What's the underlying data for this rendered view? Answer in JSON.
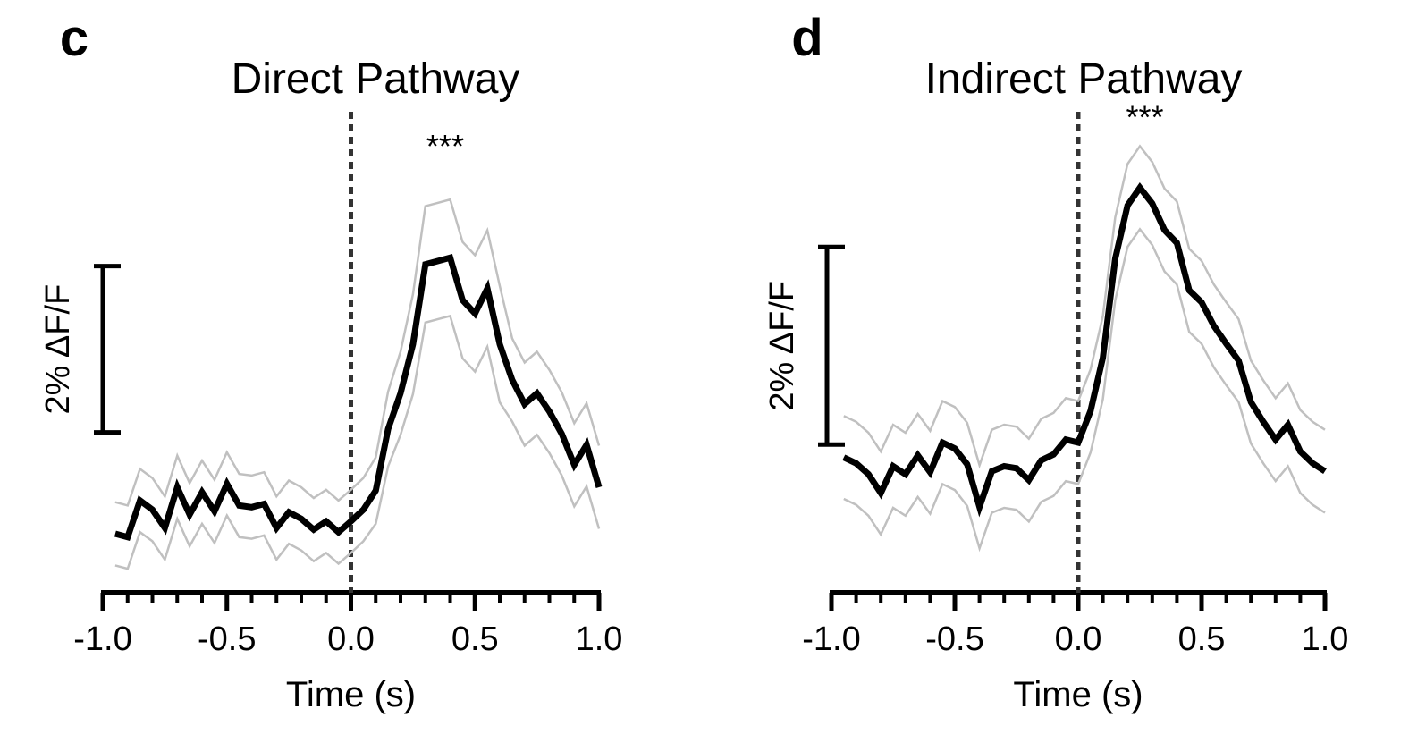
{
  "chart_data": [
    {
      "type": "line",
      "panel_label": "c",
      "title": "Direct Pathway",
      "x_label": "Time (s)",
      "annotation": "***",
      "scale_bar": {
        "value": 2,
        "label": "2% ΔF/F"
      },
      "x": [
        -0.95,
        -0.9,
        -0.85,
        -0.8,
        -0.75,
        -0.7,
        -0.65,
        -0.6,
        -0.55,
        -0.5,
        -0.45,
        -0.4,
        -0.35,
        -0.3,
        -0.25,
        -0.2,
        -0.15,
        -0.1,
        -0.05,
        0,
        0.05,
        0.1,
        0.15,
        0.2,
        0.25,
        0.3,
        0.35,
        0.4,
        0.45,
        0.5,
        0.55,
        0.6,
        0.65,
        0.7,
        0.75,
        0.8,
        0.85,
        0.9,
        0.95,
        1.0
      ],
      "series": [
        {
          "color": "#c0c0c0",
          "values": [
            0.2,
            0.16,
            0.6,
            0.49,
            0.27,
            0.76,
            0.43,
            0.7,
            0.47,
            0.8,
            0.54,
            0.52,
            0.56,
            0.27,
            0.46,
            0.38,
            0.25,
            0.35,
            0.22,
            0.35,
            0.49,
            0.74,
            1.53,
            2.01,
            2.7,
            3.76,
            3.8,
            3.84,
            3.33,
            3.17,
            3.47,
            2.8,
            2.17,
            1.88,
            2.01,
            1.79,
            1.52,
            1.15,
            1.39,
            0.88
          ]
        },
        {
          "color": "#c0c0c0",
          "values": [
            -0.56,
            -0.6,
            -0.16,
            -0.27,
            -0.49,
            0.0,
            -0.33,
            -0.06,
            -0.29,
            0.04,
            -0.22,
            -0.24,
            -0.2,
            -0.49,
            -0.3,
            -0.38,
            -0.51,
            -0.41,
            -0.54,
            -0.41,
            -0.27,
            -0.06,
            0.63,
            1.01,
            1.5,
            2.36,
            2.4,
            2.44,
            1.93,
            1.77,
            2.07,
            1.4,
            1.17,
            0.88,
            1.01,
            0.79,
            0.52,
            0.15,
            0.39,
            -0.12
          ]
        },
        {
          "color": "#000000",
          "values": [
            -0.18,
            -0.22,
            0.22,
            0.11,
            -0.11,
            0.38,
            0.05,
            0.32,
            0.09,
            0.42,
            0.16,
            0.14,
            0.18,
            -0.11,
            0.08,
            0.0,
            -0.13,
            -0.03,
            -0.16,
            -0.03,
            0.11,
            0.34,
            1.08,
            1.51,
            2.1,
            3.06,
            3.1,
            3.14,
            2.63,
            2.47,
            2.77,
            2.1,
            1.67,
            1.38,
            1.51,
            1.29,
            1.02,
            0.65,
            0.89,
            0.38
          ]
        }
      ],
      "xlim": [
        -1,
        1
      ],
      "ylim": [
        -0.9,
        4.9
      ],
      "xticks": [
        {
          "value": -1,
          "label": "-1.0"
        },
        -0.5,
        {
          "value": 0,
          "label": "0.0"
        },
        0.5,
        {
          "value": 1,
          "label": "1.0"
        }
      ],
      "xminorticks": [
        -0.9,
        -0.8,
        -0.7,
        -0.6,
        -0.4,
        -0.3,
        -0.2,
        -0.1,
        0.1,
        0.2,
        0.3,
        0.4,
        0.6,
        0.7,
        0.8,
        0.9
      ]
    },
    {
      "type": "line",
      "panel_label": "d",
      "title": "Indirect Pathway",
      "x_label": "Time (s)",
      "annotation": "***",
      "scale_bar": {
        "value": 2,
        "label": "2% ΔF/F"
      },
      "x": [
        -0.95,
        -0.9,
        -0.85,
        -0.8,
        -0.75,
        -0.7,
        -0.65,
        -0.6,
        -0.55,
        -0.5,
        -0.45,
        -0.4,
        -0.35,
        -0.3,
        -0.25,
        -0.2,
        -0.15,
        -0.1,
        -0.05,
        0,
        0.05,
        0.1,
        0.15,
        0.2,
        0.25,
        0.3,
        0.35,
        0.4,
        0.45,
        0.5,
        0.55,
        0.6,
        0.65,
        0.7,
        0.75,
        0.8,
        0.85,
        0.9,
        0.95,
        1.0
      ],
      "series": [
        {
          "color": "#c0c0c0",
          "values": [
            0.54,
            0.48,
            0.37,
            0.18,
            0.45,
            0.37,
            0.56,
            0.39,
            0.69,
            0.63,
            0.47,
            0.04,
            0.4,
            0.45,
            0.43,
            0.31,
            0.51,
            0.57,
            0.72,
            0.69,
            1.01,
            1.55,
            2.55,
            3.09,
            3.27,
            3.11,
            2.84,
            2.71,
            2.23,
            2.11,
            1.87,
            1.69,
            1.52,
            1.1,
            0.9,
            0.72,
            0.87,
            0.6,
            0.48,
            0.4
          ]
        },
        {
          "color": "#c0c0c0",
          "values": [
            -0.3,
            -0.36,
            -0.47,
            -0.66,
            -0.39,
            -0.47,
            -0.28,
            -0.45,
            -0.15,
            -0.21,
            -0.37,
            -0.8,
            -0.44,
            -0.39,
            -0.41,
            -0.53,
            -0.33,
            -0.27,
            -0.12,
            -0.15,
            0.17,
            0.71,
            1.71,
            2.25,
            2.43,
            2.27,
            2.0,
            1.87,
            1.39,
            1.27,
            1.03,
            0.85,
            0.68,
            0.26,
            0.06,
            -0.12,
            0.03,
            -0.24,
            -0.36,
            -0.44
          ]
        },
        {
          "color": "#000000",
          "values": [
            0.12,
            0.06,
            -0.05,
            -0.24,
            0.03,
            -0.05,
            0.14,
            -0.03,
            0.27,
            0.21,
            0.05,
            -0.38,
            -0.02,
            0.03,
            0.01,
            -0.11,
            0.09,
            0.15,
            0.3,
            0.27,
            0.59,
            1.13,
            2.13,
            2.67,
            2.85,
            2.69,
            2.42,
            2.29,
            1.81,
            1.69,
            1.45,
            1.27,
            1.1,
            0.68,
            0.48,
            0.3,
            0.45,
            0.18,
            0.06,
            -0.02
          ]
        }
      ],
      "xlim": [
        -1,
        1
      ],
      "ylim": [
        -1.25,
        3.65
      ],
      "xticks": [
        {
          "value": -1,
          "label": "-1.0"
        },
        -0.5,
        {
          "value": 0,
          "label": "0.0"
        },
        0.5,
        {
          "value": 1,
          "label": "1.0"
        }
      ],
      "xminorticks": [
        -0.9,
        -0.8,
        -0.7,
        -0.6,
        -0.4,
        -0.3,
        -0.2,
        -0.1,
        0.1,
        0.2,
        0.3,
        0.4,
        0.6,
        0.7,
        0.8,
        0.9
      ]
    }
  ]
}
